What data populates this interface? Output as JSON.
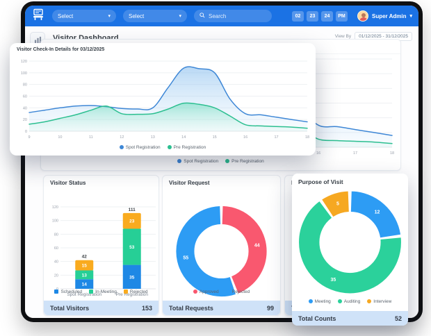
{
  "app": {
    "select1": "Select",
    "select2": "Select",
    "search_placeholder": "Search",
    "clock": [
      "02",
      "23",
      "24",
      "PM"
    ],
    "user_name": "Super Admin",
    "navbar_color": "#1b72e4"
  },
  "page": {
    "title": "Visitor Dashboard",
    "view_by_label": "View By",
    "date_range": "01/12/2025 - 31/12/2025"
  },
  "panels": {
    "checkin_bg": {
      "title": "Visitor Check-In Details for 03/12/2025"
    },
    "checkin_popup": {
      "title": "Visitor Check-In Details for 03/12/2025"
    },
    "visitor_status": {
      "title": "Visitor Status",
      "footer_label": "Total Visitors",
      "footer_value": 153
    },
    "visitor_request": {
      "title": "Visitor Request",
      "footer_label": "Total Requests",
      "footer_value": 99
    },
    "purpose_bg": {
      "title": "Purpose of Visit",
      "footer_label": "Total Counts",
      "footer_value": 52
    },
    "purpose_popup": {
      "title": "Purpose of Visit",
      "footer_label": "Total Counts",
      "footer_value": 52
    }
  },
  "colors": {
    "footer_bar": "#cfe2f8",
    "grid": "#eef0f3",
    "tick_text": "#9aa1ac"
  },
  "chart_data": [
    {
      "id": "checkin",
      "type": "area",
      "title": "Visitor Check-In Details for 03/12/2025",
      "x": [
        9,
        9.5,
        10,
        10.5,
        11,
        11.5,
        12,
        12.5,
        13,
        13.5,
        14,
        14.5,
        15,
        15.5,
        16,
        16.5,
        17,
        17.5,
        18
      ],
      "xticks": [
        9,
        10,
        11,
        12,
        13,
        14,
        15,
        16,
        17,
        18
      ],
      "ylim": [
        0,
        120
      ],
      "yticks": [
        0,
        20,
        40,
        60,
        80,
        100,
        120
      ],
      "grid": true,
      "legend_position": "bottom",
      "series": [
        {
          "name": "Spot Registration",
          "color": "#3e87d6",
          "fill_top": "rgba(126,184,236,0.55)",
          "fill_bottom": "rgba(195,226,250,0.12)",
          "values": [
            32,
            36,
            40,
            43,
            44,
            42,
            39,
            38,
            40,
            75,
            108,
            107,
            100,
            55,
            30,
            28,
            24,
            20,
            16
          ]
        },
        {
          "name": "Pre Registration",
          "color": "#2cbf90",
          "fill_top": "rgba(92,216,178,0.50)",
          "fill_bottom": "rgba(190,240,224,0.15)",
          "values": [
            12,
            16,
            22,
            28,
            36,
            43,
            30,
            29,
            30,
            38,
            48,
            46,
            40,
            26,
            11,
            9,
            8,
            7,
            5
          ]
        }
      ]
    },
    {
      "id": "visitor_status",
      "type": "bar",
      "stacked": true,
      "title": "Visitor Status",
      "categories": [
        "Spot Registration",
        "Pre Registration"
      ],
      "series": [
        {
          "name": "Scheduled",
          "color": "#1e88e5",
          "values": [
            14,
            35
          ]
        },
        {
          "name": "In-Meeting",
          "color": "#26cf96",
          "values": [
            13,
            53
          ]
        },
        {
          "name": "Rejected",
          "color": "#f9ab1f",
          "values": [
            15,
            23
          ]
        }
      ],
      "totals": [
        42,
        111
      ],
      "ylim": [
        0,
        120
      ],
      "yticks": [
        0,
        20,
        40,
        60,
        80,
        100,
        120
      ],
      "grid": true,
      "legend_position": "bottom"
    },
    {
      "id": "visitor_request",
      "type": "pie",
      "title": "Visitor Request",
      "slices": [
        {
          "label": "Approved",
          "value": 44,
          "color": "#f9586f"
        },
        {
          "label": "Rejected",
          "value": 55,
          "color": "#2d9cf4"
        }
      ],
      "total": 99,
      "legend_position": "bottom"
    },
    {
      "id": "purpose",
      "type": "pie",
      "title": "Purpose of Visit",
      "slices": [
        {
          "label": "Meeting",
          "value": 12,
          "color": "#2d9cf4"
        },
        {
          "label": "Auditing",
          "value": 35,
          "color": "#2bd19b"
        },
        {
          "label": "Interview",
          "value": 5,
          "color": "#f6a821"
        }
      ],
      "total": 52,
      "legend_position": "bottom"
    }
  ]
}
